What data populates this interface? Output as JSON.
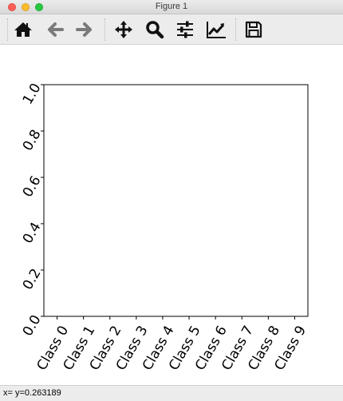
{
  "window": {
    "title": "Figure 1"
  },
  "toolbar": {
    "buttons": [
      {
        "name": "home-button",
        "icon": "home-icon"
      },
      {
        "name": "back-button",
        "icon": "arrow-left-icon"
      },
      {
        "name": "forward-button",
        "icon": "arrow-right-icon"
      },
      {
        "name": "pan-button",
        "icon": "move-icon"
      },
      {
        "name": "zoom-button",
        "icon": "magnifier-icon"
      },
      {
        "name": "configure-subplots-button",
        "icon": "sliders-icon"
      },
      {
        "name": "edit-axis-button",
        "icon": "line-chart-icon"
      },
      {
        "name": "save-button",
        "icon": "floppy-disk-icon"
      }
    ]
  },
  "status": {
    "text": "x= y=0.263189"
  },
  "chart_data": {
    "type": "bar",
    "title": "",
    "xlabel": "",
    "ylabel": "",
    "categories": [
      "Class 0",
      "Class 1",
      "Class 2",
      "Class 3",
      "Class 4",
      "Class 5",
      "Class 6",
      "Class 7",
      "Class 8",
      "Class 9"
    ],
    "series": [],
    "ylim": [
      0.0,
      1.0
    ],
    "yticks": [
      "0.0",
      "0.2",
      "0.4",
      "0.6",
      "0.8",
      "1.0"
    ],
    "grid": false,
    "xtick_rotation": "60 degrees",
    "ytick_rotation": "60 degrees"
  }
}
